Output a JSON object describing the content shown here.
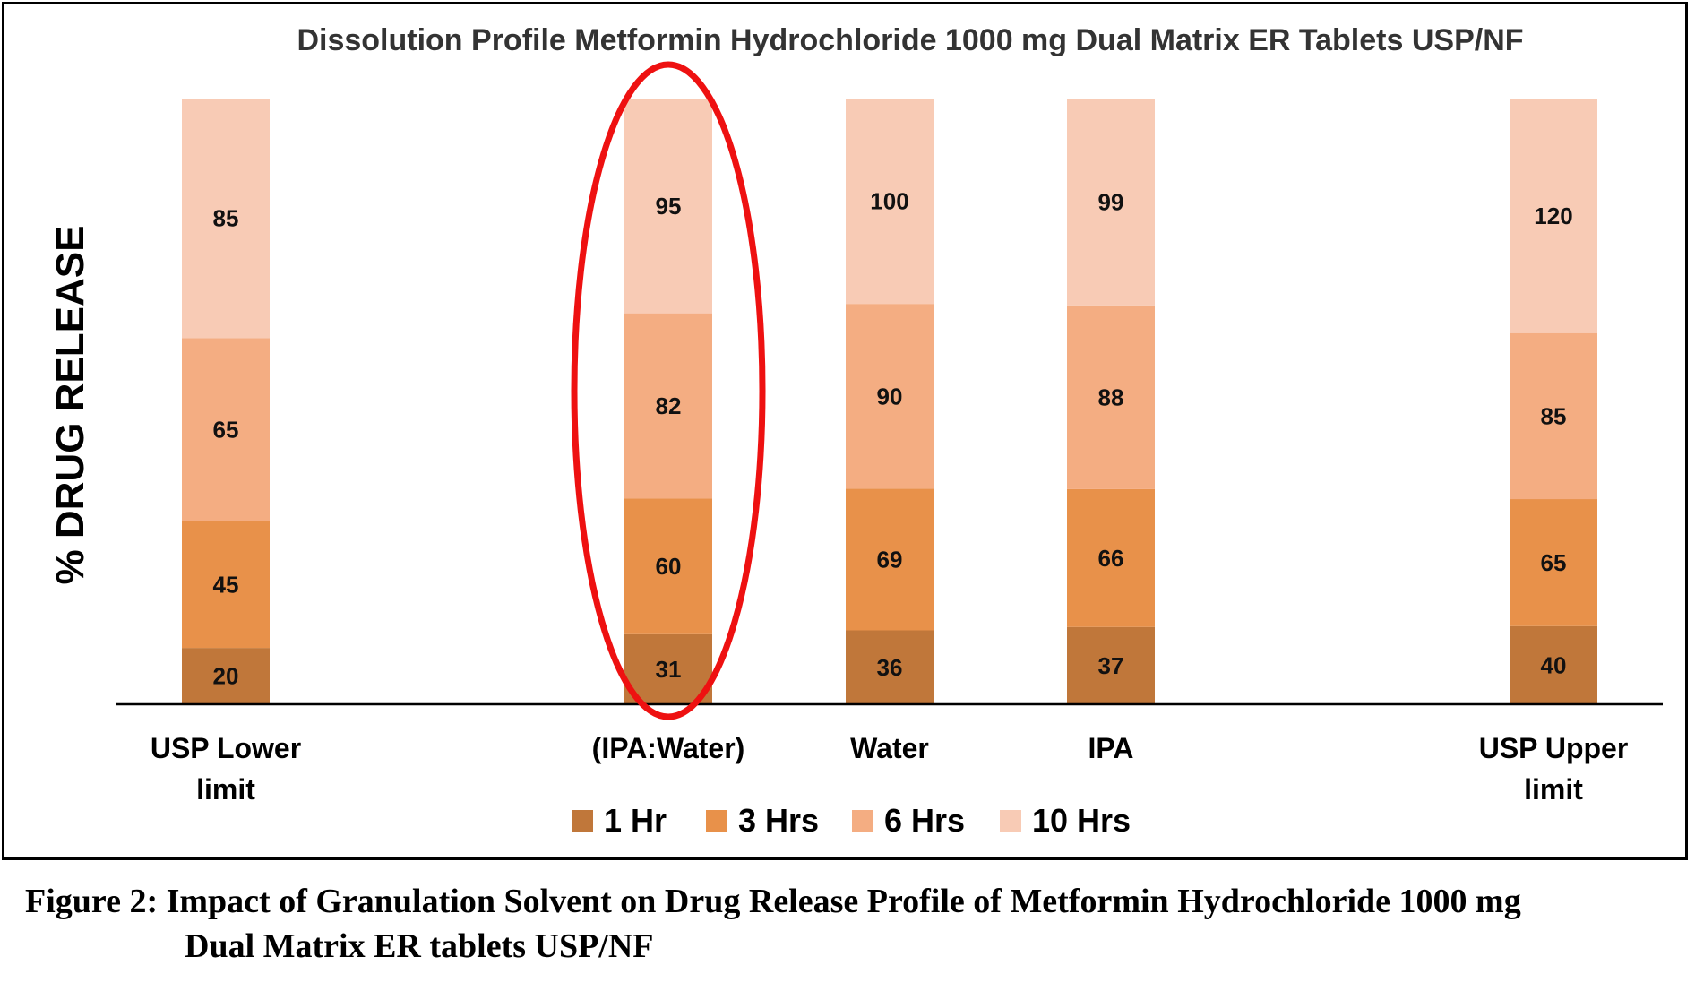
{
  "chart_data": {
    "type": "bar",
    "stacked": true,
    "title": "Dissolution Profile Metformin Hydrochloride 1000 mg Dual Matrix ER Tablets USP/NF",
    "ylabel": "% DRUG RELEASE",
    "xlabel": "",
    "categories": [
      "USP Lower limit",
      "(IPA:Water)",
      "Water",
      "IPA",
      "USP Upper limit"
    ],
    "category_positions": [
      0,
      2,
      3,
      4,
      6
    ],
    "series": [
      {
        "name": "1 Hr",
        "color": "#c0773a",
        "values": [
          20,
          31,
          36,
          37,
          40
        ]
      },
      {
        "name": "3 Hrs",
        "color": "#e8914a",
        "values": [
          45,
          60,
          69,
          66,
          65
        ]
      },
      {
        "name": "6 Hrs",
        "color": "#f4ad82",
        "values": [
          65,
          82,
          90,
          88,
          85
        ]
      },
      {
        "name": "10 Hrs",
        "color": "#f8cbb5",
        "values": [
          85,
          95,
          100,
          99,
          120
        ]
      }
    ],
    "highlight": {
      "category": "(IPA:Water)",
      "shape": "ellipse",
      "color": "#ee1111"
    },
    "legend_position": "bottom",
    "grid": false,
    "y_axis_visible": false
  },
  "caption": {
    "line1": "Figure 2: Impact of Granulation Solvent on Drug Release Profile of Metformin Hydrochloride 1000 mg",
    "line2": "Dual Matrix ER tablets USP/NF"
  }
}
